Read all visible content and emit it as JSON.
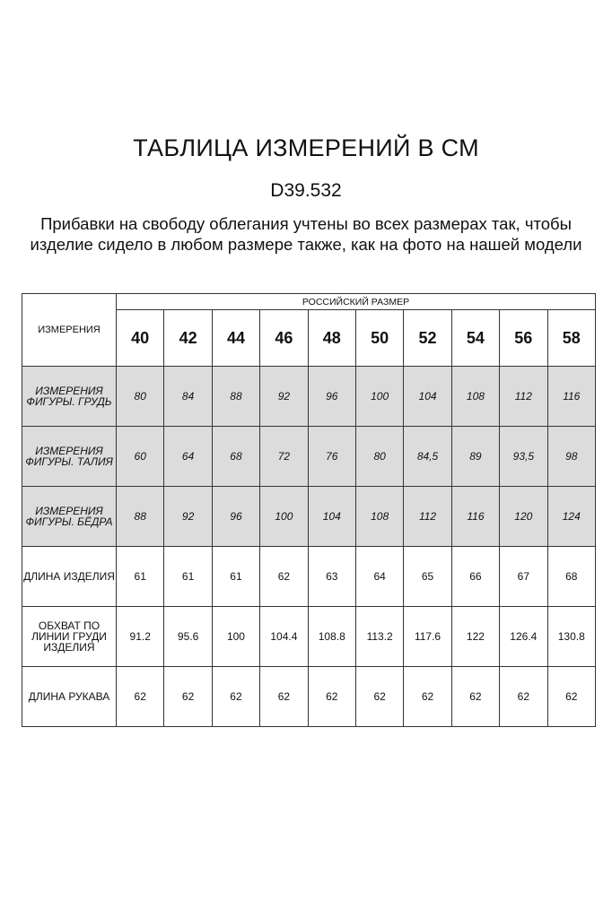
{
  "title": "ТАБЛИЦА ИЗМЕРЕНИЙ В СМ",
  "code": "D39.532",
  "note_lines": [
    "Прибавки на свободу облегания учтены во всех размерах так, чтобы",
    "изделие сидело в любом размере также, как на фото на нашей модели"
  ],
  "table": {
    "measure_header": "ИЗМЕРЕНИЯ",
    "group_header": "РОССИЙСКИЙ РАЗМЕР",
    "sizes": [
      "40",
      "42",
      "44",
      "46",
      "48",
      "50",
      "52",
      "54",
      "56",
      "58"
    ],
    "rows": [
      {
        "label": "ИЗМЕРЕНИЯ ФИГУРЫ. ГРУДЬ",
        "shaded": true,
        "values": [
          "80",
          "84",
          "88",
          "92",
          "96",
          "100",
          "104",
          "108",
          "112",
          "116"
        ]
      },
      {
        "label": "ИЗМЕРЕНИЯ ФИГУРЫ. ТАЛИЯ",
        "shaded": true,
        "values": [
          "60",
          "64",
          "68",
          "72",
          "76",
          "80",
          "84,5",
          "89",
          "93,5",
          "98"
        ]
      },
      {
        "label": "ИЗМЕРЕНИЯ ФИГУРЫ. БЁДРА",
        "shaded": true,
        "values": [
          "88",
          "92",
          "96",
          "100",
          "104",
          "108",
          "112",
          "116",
          "120",
          "124"
        ]
      },
      {
        "label": "ДЛИНА ИЗДЕЛИЯ",
        "shaded": false,
        "values": [
          "61",
          "61",
          "61",
          "62",
          "63",
          "64",
          "65",
          "66",
          "67",
          "68"
        ]
      },
      {
        "label": "ОБХВАТ ПО ЛИНИИ ГРУДИ ИЗДЕЛИЯ",
        "shaded": false,
        "values": [
          "91.2",
          "95.6",
          "100",
          "104.4",
          "108.8",
          "113.2",
          "117.6",
          "122",
          "126.4",
          "130.8"
        ]
      },
      {
        "label": "ДЛИНА РУКАВА",
        "shaded": false,
        "values": [
          "62",
          "62",
          "62",
          "62",
          "62",
          "62",
          "62",
          "62",
          "62",
          "62"
        ]
      }
    ]
  },
  "colors": {
    "shaded_row": "#dcdcdc",
    "border": "#333333"
  }
}
